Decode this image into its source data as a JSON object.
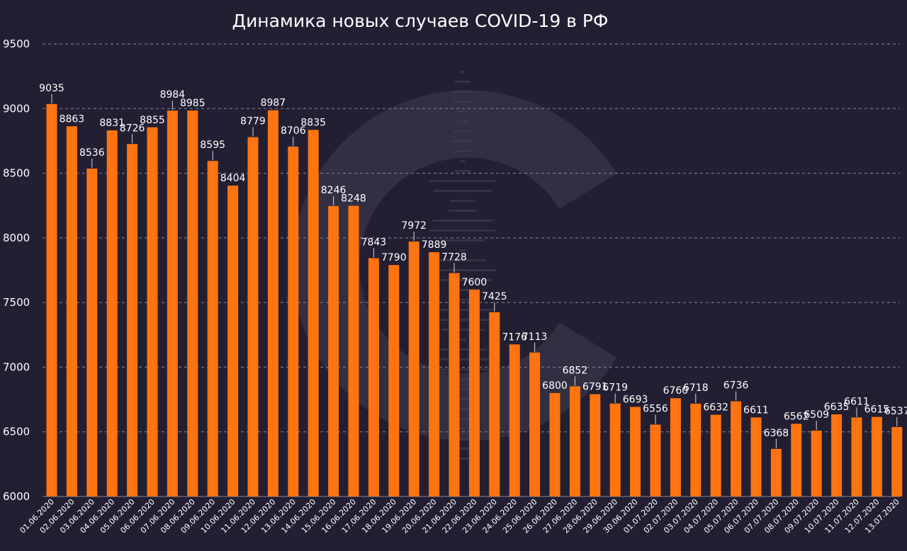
{
  "chart_data": {
    "type": "bar",
    "title": "Динамика новых случаев COVID-19 в РФ",
    "xlabel": "",
    "ylabel": "",
    "ylim": [
      6000,
      9500
    ],
    "yticks": [
      6000,
      6500,
      7000,
      7500,
      8000,
      8500,
      9000,
      9500
    ],
    "grid": true,
    "bar_color": "#ff7410",
    "background_color": "#231f33",
    "watermark": "C-logo",
    "categories": [
      "01.06.2020",
      "02.06.2020",
      "03.06.2020",
      "04.06.2020",
      "05.06.2020",
      "06.06.2020",
      "07.06.2020",
      "08.06.2020",
      "09.06.2020",
      "10.06.2020",
      "11.06.2020",
      "12.06.2020",
      "13.06.2020",
      "14.06.2020",
      "15.06.2020",
      "16.06.2020",
      "17.06.2020",
      "18.06.2020",
      "19.06.2020",
      "20.06.2020",
      "21.06.2020",
      "22.06.2020",
      "23.06.2020",
      "24.06.2020",
      "25.06.2020",
      "26.06.2020",
      "27.06.2020",
      "28.06.2020",
      "29.06.2020",
      "30.06.2020",
      "01.07.2020",
      "02.07.2020",
      "03.07.2020",
      "04.07.2020",
      "05.07.2020",
      "06.07.2020",
      "07.07.2020",
      "08.07.2020",
      "09.07.2020",
      "10.07.2020",
      "11.07.2020",
      "12.07.2020",
      "13.07.2020"
    ],
    "values": [
      9035,
      8863,
      8536,
      8831,
      8726,
      8855,
      8984,
      8985,
      8595,
      8404,
      8779,
      8987,
      8706,
      8835,
      8246,
      8248,
      7843,
      7790,
      7972,
      7889,
      7728,
      7600,
      7425,
      7176,
      7113,
      6800,
      6852,
      6791,
      6719,
      6693,
      6556,
      6760,
      6718,
      6632,
      6736,
      6611,
      6368,
      6562,
      6509,
      6635,
      6611,
      6615,
      6537
    ]
  }
}
